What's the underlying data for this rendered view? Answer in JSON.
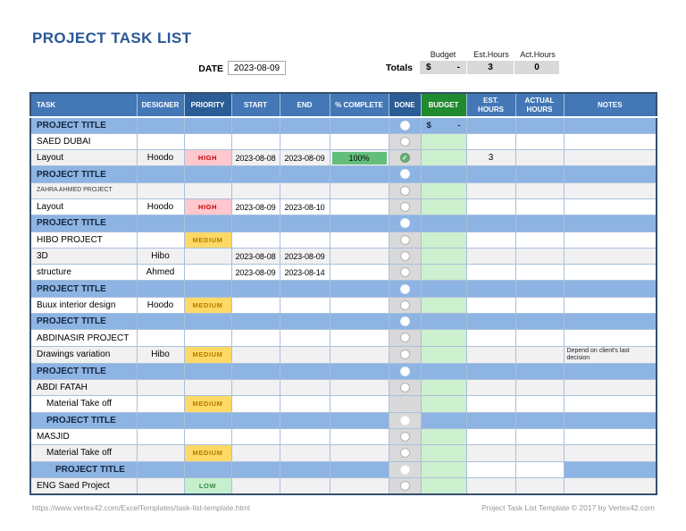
{
  "page": {
    "title": "PROJECT TASK LIST"
  },
  "toolbar": {
    "date_label": "DATE",
    "date_value": "2023-08-09",
    "totals_label": "Totals",
    "summary": [
      {
        "key": "budget",
        "label": "Budget",
        "symbol": "$",
        "value": "-"
      },
      {
        "key": "est_hours",
        "label": "Est.Hours",
        "value": "3"
      },
      {
        "key": "act_hours",
        "label": "Act.Hours",
        "value": "0"
      }
    ]
  },
  "table": {
    "columns": [
      {
        "key": "task",
        "label": "TASK",
        "variant": "blue"
      },
      {
        "key": "designer",
        "label": "DESIGNER",
        "variant": "blue"
      },
      {
        "key": "priority",
        "label": "PRIORITY",
        "variant": "dark"
      },
      {
        "key": "start",
        "label": "START",
        "variant": "blue"
      },
      {
        "key": "end",
        "label": "END",
        "variant": "blue"
      },
      {
        "key": "complete",
        "label": "% COMPLETE",
        "variant": "blue"
      },
      {
        "key": "done",
        "label": "DONE",
        "variant": "dark"
      },
      {
        "key": "budget",
        "label": "BUDGET",
        "variant": "green"
      },
      {
        "key": "est",
        "label": "EST.\nHOURS",
        "variant": "blue"
      },
      {
        "key": "actual",
        "label": "ACTUAL\nHOURS",
        "variant": "blue"
      },
      {
        "key": "notes",
        "label": "NOTES",
        "variant": "blue"
      }
    ],
    "rows": [
      {
        "type": "title",
        "task": "PROJECT TITLE",
        "budget": {
          "symbol": "$",
          "amount": "-"
        }
      },
      {
        "type": "task",
        "band": "white",
        "task": "SAED DUBAI"
      },
      {
        "type": "task",
        "band": "gray",
        "task": "Layout",
        "designer": "Hoodo",
        "priority": "HIGH",
        "start": "2023-08-08",
        "end": "2023-08-09",
        "complete": "100%",
        "done": "checked",
        "est": "3"
      },
      {
        "type": "title",
        "task": "PROJECT TITLE"
      },
      {
        "type": "task",
        "band": "gray",
        "task": "ZAHRA AHMED PROJECT",
        "small": true
      },
      {
        "type": "task",
        "band": "white",
        "task": "Layout",
        "designer": "Hoodo",
        "priority": "HIGH",
        "start": "2023-08-09",
        "end": "2023-08-10"
      },
      {
        "type": "title",
        "task": "PROJECT TITLE"
      },
      {
        "type": "task",
        "band": "white",
        "task": "HIBO PROJECT",
        "priority": "MEDIUM"
      },
      {
        "type": "task",
        "band": "gray",
        "task": "3D",
        "designer": "Hibo",
        "start": "2023-08-08",
        "end": "2023-08-09"
      },
      {
        "type": "task",
        "band": "white",
        "task": "structure",
        "designer": "Ahmed",
        "start": "2023-08-09",
        "end": "2023-08-14"
      },
      {
        "type": "title",
        "task": "PROJECT TITLE"
      },
      {
        "type": "task",
        "band": "white",
        "task": "Buux interior design",
        "designer": "Hoodo",
        "priority": "MEDIUM"
      },
      {
        "type": "title",
        "task": "PROJECT TITLE"
      },
      {
        "type": "task",
        "band": "white",
        "task": "ABDINASIR PROJECT"
      },
      {
        "type": "task",
        "band": "gray",
        "task": "Drawings variation",
        "designer": "Hibo",
        "priority": "MEDIUM",
        "notes": "Depend on client's last decision"
      },
      {
        "type": "title",
        "task": "PROJECT TITLE"
      },
      {
        "type": "task",
        "band": "gray",
        "task": "ABDI FATAH"
      },
      {
        "type": "task",
        "band": "white",
        "task": "Material Take off",
        "indent": 1,
        "priority": "MEDIUM",
        "done": "none"
      },
      {
        "type": "title",
        "task": "PROJECT TITLE",
        "indent": 1,
        "done_bg": "gray"
      },
      {
        "type": "task",
        "band": "white",
        "task": "MASJID"
      },
      {
        "type": "task",
        "band": "gray",
        "task": "Material Take off",
        "indent": 1,
        "priority": "MEDIUM"
      },
      {
        "type": "title",
        "task": "PROJECT TITLE",
        "indent": 2,
        "done_bg": "gray",
        "budget_bg": "green",
        "est_bg": "white",
        "act_bg": "white"
      },
      {
        "type": "task",
        "band": "gray",
        "task": "ENG Saed Project",
        "priority": "LOW"
      }
    ]
  },
  "footer": {
    "left_url": "https://www.vertex42.com/ExcelTemplates/task-list-template.html",
    "right_credit": "Project Task List Template © 2017 by Vertex42.com"
  },
  "colors": {
    "title_accent": "#2b5797",
    "header_blue": "#4377b6",
    "header_dark_blue": "#2b5c95",
    "header_green": "#1f8b2e",
    "title_row_blue": "#8db4e2",
    "band_gray": "#f1f1f1",
    "done_column_gray": "#d9d9d9",
    "budget_column_green": "#cdf0ce",
    "complete_bar_green": "#63be7b",
    "done_check_green": "#69ae76",
    "priority_high_bg": "#ffc7ce",
    "priority_high_text": "#c00000",
    "priority_medium_bg": "#ffd966",
    "priority_medium_text": "#b07c00",
    "priority_low_bg": "#c6efce",
    "priority_low_text": "#36873f",
    "totals_cell_gray": "#d9d9d9"
  }
}
